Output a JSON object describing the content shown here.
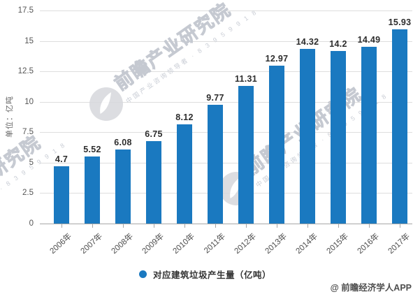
{
  "chart_data": {
    "type": "bar",
    "categories": [
      "2006年",
      "2007年",
      "2008年",
      "2009年",
      "2010年",
      "2011年",
      "2012年",
      "2013年",
      "2014年",
      "2015年",
      "2016年",
      "2017年"
    ],
    "values": [
      4.7,
      5.52,
      6.08,
      6.75,
      8.12,
      9.77,
      11.31,
      12.97,
      14.32,
      14.2,
      14.49,
      15.93
    ],
    "series_name": "对应建筑垃圾产生量（亿吨）",
    "ylabel": "单位：亿吨",
    "ylim": [
      0,
      17.5
    ],
    "yticks": [
      0,
      2.5,
      5,
      7.5,
      10,
      12.5,
      15,
      17.5
    ],
    "grid": true,
    "value_labels": true,
    "bar_color": "#1a79c0",
    "legend_position": "bottom-center"
  },
  "legend": {
    "label": "对应建筑垃圾产生量（亿吨）",
    "marker_color": "#1a79c0"
  },
  "watermark": {
    "brand": "前瞻产业研究院",
    "tagline": "中国产业咨询领导者 · 8 3 9 5 9 9 1 8"
  },
  "footer": {
    "credit": "@ 前瞻经济学人APP"
  }
}
